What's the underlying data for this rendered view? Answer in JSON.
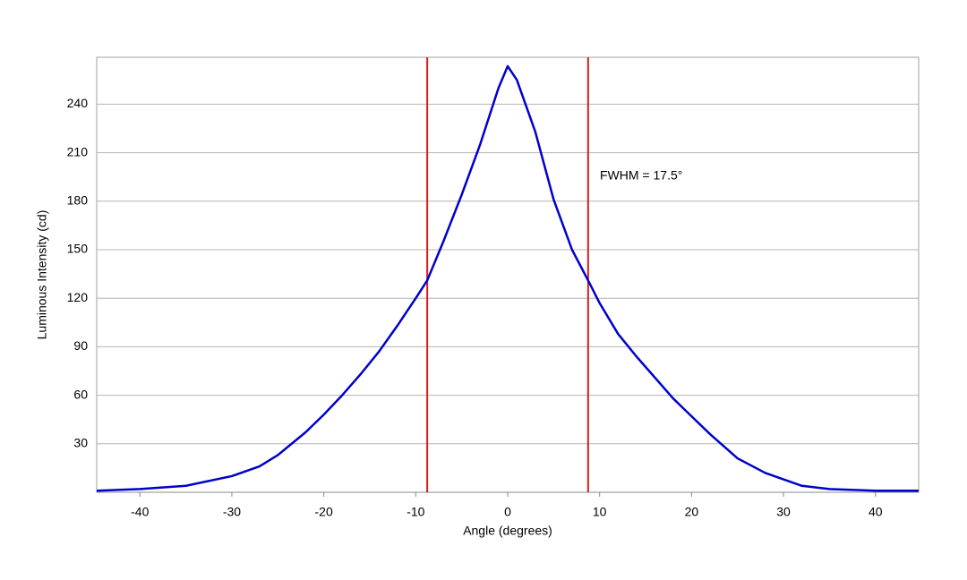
{
  "chart_data": {
    "type": "line",
    "x_label": "Angle (degrees)",
    "y_label": "Luminous Intensity (cd)",
    "annotation": "FWHM = 17.5°",
    "x": [
      -44.7,
      -40,
      -35,
      -30,
      -27,
      -25,
      -22,
      -20,
      -18,
      -16,
      -14,
      -12,
      -10,
      -8.75,
      -7,
      -5,
      -3,
      -1,
      0,
      1,
      3,
      5,
      7,
      8.75,
      10,
      12,
      14,
      16,
      18,
      20,
      22,
      25,
      28,
      30,
      32,
      35,
      40,
      44.7
    ],
    "series": [
      {
        "color": "#0000cc",
        "values": [
          1,
          2,
          4,
          10,
          16,
          23,
          37,
          48,
          60,
          73,
          87,
          103,
          120,
          131,
          155,
          184,
          215,
          250,
          263.5,
          255,
          223,
          181,
          150,
          131,
          117,
          98,
          84,
          71,
          58,
          47,
          36,
          21,
          12,
          8,
          4,
          2,
          1,
          1
        ]
      }
    ],
    "vlines": [
      -8.75,
      8.75
    ],
    "vline_color": "#d62020",
    "xlim": [
      -44.7,
      44.7
    ],
    "ylim": [
      0,
      269
    ],
    "xticks": [
      -40,
      -30,
      -20,
      -10,
      0,
      10,
      20,
      30,
      40
    ],
    "yticks": [
      30,
      60,
      90,
      120,
      150,
      180,
      210,
      240
    ],
    "grid": true
  }
}
